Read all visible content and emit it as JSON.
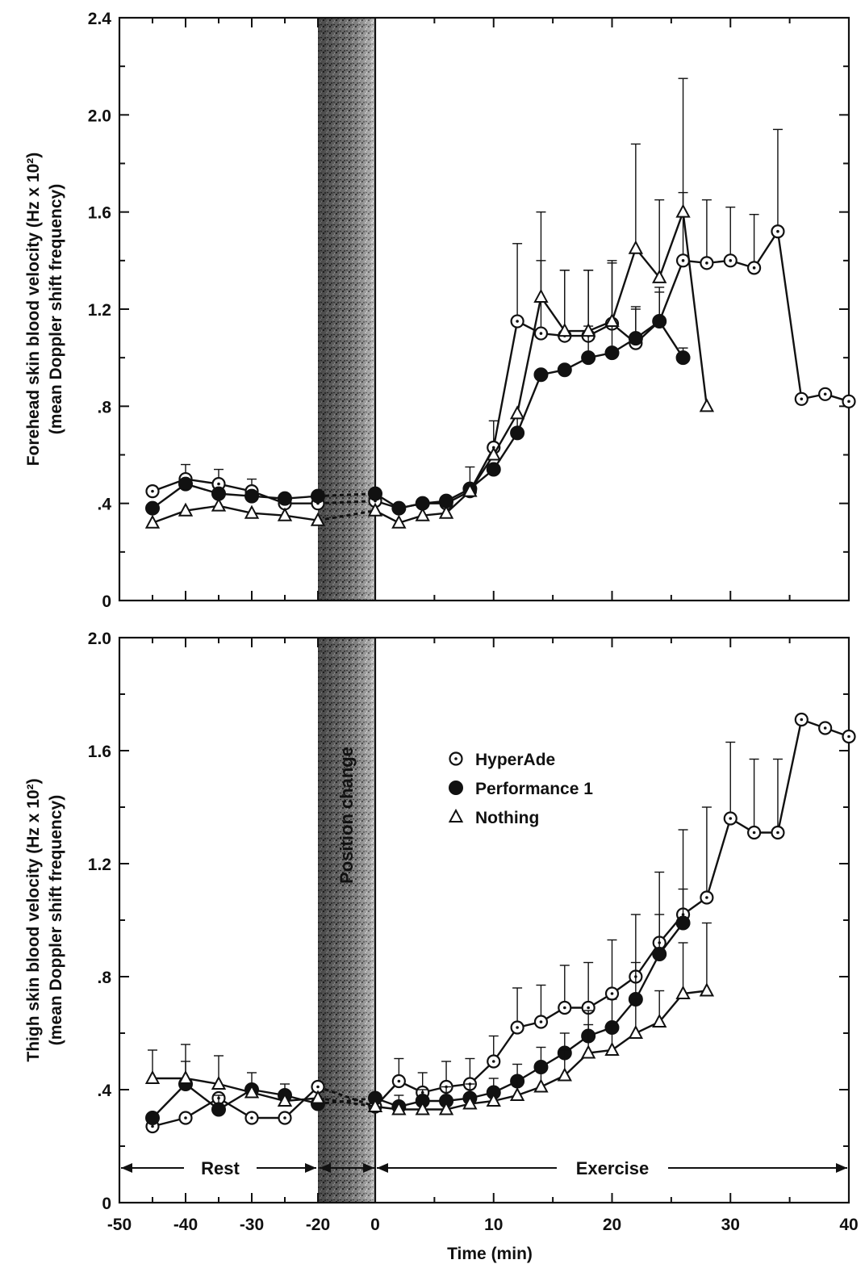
{
  "chart_data": [
    {
      "type": "line",
      "ylabel": "Forehead skin blood velocity (Hz x 10²)",
      "ylabel_line2": "(mean Doppler shift frequency)",
      "xlabel": "",
      "xlim": [
        -50,
        40
      ],
      "ylim": [
        0,
        2.4
      ],
      "xticks": [
        "-50",
        "-40",
        "-30",
        "-20",
        "0",
        "10",
        "20",
        "30",
        "40"
      ],
      "yticks": [
        "0",
        ".4",
        ".8",
        "1.2",
        "1.6",
        "2.0",
        "2.4"
      ],
      "shaded_region": [
        -20,
        0
      ],
      "series": [
        {
          "name": "HyperAde",
          "marker": "circle-dot",
          "x": [
            -45,
            -40,
            -35,
            -30,
            -25,
            -20,
            0,
            2,
            4,
            6,
            8,
            10,
            12,
            14,
            16,
            18,
            20,
            22,
            24,
            26,
            28,
            30,
            32,
            34,
            36,
            38,
            40
          ],
          "y": [
            0.45,
            0.5,
            0.48,
            0.45,
            0.4,
            0.4,
            0.41,
            0.38,
            0.4,
            0.4,
            0.45,
            0.63,
            1.15,
            1.1,
            1.09,
            1.09,
            1.14,
            1.06,
            1.15,
            1.4,
            1.39,
            1.4,
            1.37,
            1.52,
            0.83,
            0.85,
            0.82
          ],
          "err": [
            0.02,
            0.06,
            0.06,
            0.05,
            0,
            0,
            0,
            0,
            0,
            0,
            0,
            0.11,
            0.32,
            0.3,
            0.27,
            0.27,
            0.25,
            0.15,
            0.12,
            0.28,
            0.26,
            0.22,
            0.22,
            0.42,
            0,
            0,
            0
          ]
        },
        {
          "name": "Performance 1",
          "marker": "filled-circle",
          "x": [
            -45,
            -40,
            -35,
            -30,
            -25,
            -20,
            0,
            2,
            4,
            6,
            8,
            10,
            12,
            14,
            16,
            18,
            20,
            22,
            24,
            26
          ],
          "y": [
            0.38,
            0.48,
            0.44,
            0.43,
            0.42,
            0.43,
            0.44,
            0.38,
            0.4,
            0.41,
            0.46,
            0.54,
            0.69,
            0.93,
            0.95,
            1.0,
            1.02,
            1.08,
            1.15,
            1.0
          ],
          "err": [
            0,
            0,
            0,
            0,
            0,
            0,
            0,
            0,
            0,
            0,
            0.09,
            0,
            0.07,
            0,
            0,
            0.13,
            0.11,
            0.12,
            0.14,
            0.04
          ]
        },
        {
          "name": "Nothing",
          "marker": "open-triangle",
          "x": [
            -45,
            -40,
            -35,
            -30,
            -25,
            -20,
            0,
            2,
            4,
            6,
            8,
            10,
            12,
            14,
            16,
            18,
            20,
            22,
            24,
            26,
            28
          ],
          "y": [
            0.32,
            0.37,
            0.39,
            0.36,
            0.35,
            0.33,
            0.37,
            0.32,
            0.35,
            0.36,
            0.45,
            0.6,
            0.77,
            1.25,
            1.11,
            1.11,
            1.15,
            1.45,
            1.33,
            1.6,
            0.8
          ],
          "err": [
            0,
            0,
            0.03,
            0,
            0,
            0,
            0,
            0,
            0,
            0,
            0,
            0,
            0,
            0.35,
            0.25,
            0.25,
            0.25,
            0.43,
            0.32,
            0.55,
            0
          ]
        }
      ]
    },
    {
      "type": "line",
      "ylabel": "Thigh skin blood velocity (Hz x 10²)",
      "ylabel_line2": "(mean Doppler shift frequency)",
      "xlabel": "Time (min)",
      "xlim": [
        -50,
        40
      ],
      "ylim": [
        0,
        2.0
      ],
      "xticks": [
        "-50",
        "-40",
        "-30",
        "-20",
        "0",
        "10",
        "20",
        "30",
        "40"
      ],
      "yticks": [
        "0",
        ".4",
        ".8",
        "1.2",
        "1.6",
        "2.0"
      ],
      "shaded_region": [
        -20,
        0
      ],
      "legend": "upper-center",
      "annotations": {
        "position_change": "Position change",
        "rest": "Rest",
        "exercise": "Exercise"
      },
      "series": [
        {
          "name": "HyperAde",
          "marker": "circle-dot",
          "x": [
            -45,
            -40,
            -35,
            -30,
            -25,
            -20,
            0,
            2,
            4,
            6,
            8,
            10,
            12,
            14,
            16,
            18,
            20,
            22,
            24,
            26,
            28,
            30,
            32,
            34,
            36,
            38,
            40
          ],
          "y": [
            0.27,
            0.3,
            0.37,
            0.3,
            0.3,
            0.41,
            0.34,
            0.43,
            0.39,
            0.41,
            0.42,
            0.5,
            0.62,
            0.64,
            0.69,
            0.69,
            0.74,
            0.8,
            0.92,
            1.02,
            1.08,
            1.36,
            1.31,
            1.31,
            1.71,
            1.68,
            1.65
          ],
          "err": [
            0,
            0,
            0,
            0,
            0,
            0,
            0,
            0.08,
            0.07,
            0.09,
            0.09,
            0.09,
            0.14,
            0.13,
            0.15,
            0.16,
            0.19,
            0.22,
            0.25,
            0.3,
            0.32,
            0.27,
            0.26,
            0.26,
            0,
            0,
            0
          ]
        },
        {
          "name": "Performance 1",
          "marker": "filled-circle",
          "x": [
            -45,
            -40,
            -35,
            -30,
            -25,
            -20,
            0,
            2,
            4,
            6,
            8,
            10,
            12,
            14,
            16,
            18,
            20,
            22,
            24,
            26
          ],
          "y": [
            0.3,
            0.42,
            0.33,
            0.4,
            0.38,
            0.35,
            0.37,
            0.34,
            0.36,
            0.36,
            0.37,
            0.39,
            0.43,
            0.48,
            0.53,
            0.59,
            0.62,
            0.72,
            0.88,
            0.99
          ],
          "err": [
            0,
            0.08,
            0.05,
            0.06,
            0.04,
            0,
            0,
            0.04,
            0.04,
            0.05,
            0.05,
            0.05,
            0.06,
            0.07,
            0.07,
            0.09,
            0.1,
            0.13,
            0.14,
            0.12
          ]
        },
        {
          "name": "Nothing",
          "marker": "open-triangle",
          "x": [
            -45,
            -40,
            -35,
            -30,
            -25,
            -20,
            0,
            2,
            4,
            6,
            8,
            10,
            12,
            14,
            16,
            18,
            20,
            22,
            24,
            26,
            28
          ],
          "y": [
            0.44,
            0.44,
            0.42,
            0.39,
            0.36,
            0.37,
            0.34,
            0.33,
            0.33,
            0.33,
            0.35,
            0.36,
            0.38,
            0.41,
            0.45,
            0.53,
            0.54,
            0.6,
            0.64,
            0.74,
            0.75
          ],
          "err": [
            0.1,
            0.12,
            0.1,
            0,
            0,
            0,
            0,
            0,
            0,
            0,
            0,
            0,
            0.06,
            0.08,
            0.09,
            0.1,
            0.09,
            0.12,
            0.11,
            0.18,
            0.24
          ]
        }
      ]
    }
  ]
}
